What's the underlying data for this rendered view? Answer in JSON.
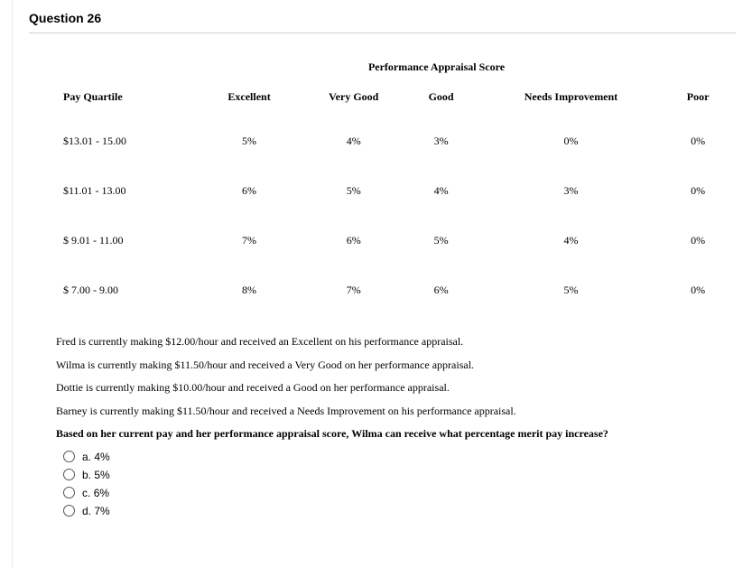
{
  "header": {
    "title": "Question 26"
  },
  "table": {
    "super_header": "Performance Appraisal Score",
    "columns": [
      "Pay Quartile",
      "Excellent",
      "Very Good",
      "Good",
      "Needs Improvement",
      "Poor"
    ],
    "rows": [
      [
        "$13.01 - 15.00",
        "5%",
        "4%",
        "3%",
        "0%",
        "0%"
      ],
      [
        "$11.01 - 13.00",
        "6%",
        "5%",
        "4%",
        "3%",
        "0%"
      ],
      [
        "$  9.01 - 11.00",
        "7%",
        "6%",
        "5%",
        "4%",
        "0%"
      ],
      [
        "$  7.00 -   9.00",
        "8%",
        "7%",
        "6%",
        "5%",
        "0%"
      ]
    ]
  },
  "narrative": {
    "lines": [
      "Fred is currently making $12.00/hour and received an Excellent on his performance appraisal.",
      "Wilma is currently making $11.50/hour and received a Very Good on her performance appraisal.",
      "Dottie is currently making $10.00/hour and received a Good on her performance appraisal.",
      "Barney is currently making $11.50/hour and received a Needs Improvement on his performance appraisal."
    ]
  },
  "question": {
    "text": "Based on her current pay and her performance appraisal score, Wilma can receive what percentage merit pay increase?"
  },
  "options": [
    {
      "letter": "a.",
      "text": "4%"
    },
    {
      "letter": "b.",
      "text": "5%"
    },
    {
      "letter": "c.",
      "text": "6%"
    },
    {
      "letter": "d.",
      "text": "7%"
    }
  ]
}
